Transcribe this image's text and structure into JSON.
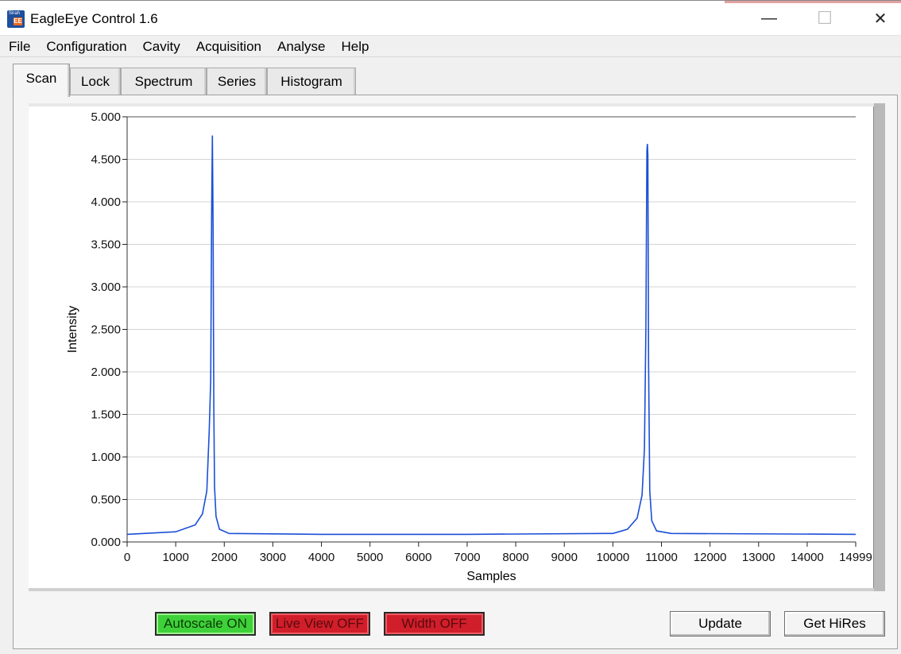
{
  "window": {
    "title": "EagleEye Control 1.6",
    "icon_label": "Sirah",
    "icon_badge": "EE",
    "minimize_glyph": "—",
    "maximize_glyph": "☐",
    "close_glyph": "✕"
  },
  "menu": [
    "File",
    "Configuration",
    "Cavity",
    "Acquisition",
    "Analyse",
    "Help"
  ],
  "tabs": [
    {
      "label": "Scan",
      "active": true
    },
    {
      "label": "Lock",
      "active": false
    },
    {
      "label": "Spectrum",
      "active": false
    },
    {
      "label": "Series",
      "active": false
    },
    {
      "label": "Histogram",
      "active": false
    }
  ],
  "chart_data": {
    "type": "line",
    "title": "",
    "xlabel": "Samples",
    "ylabel": "Intensity",
    "xlim": [
      0,
      14999
    ],
    "ylim": [
      0,
      5
    ],
    "x_ticks": [
      "0",
      "1000",
      "2000",
      "3000",
      "4000",
      "5000",
      "6000",
      "7000",
      "8000",
      "9000",
      "10000",
      "11000",
      "12000",
      "13000",
      "14000",
      "14999"
    ],
    "y_ticks": [
      "0.000",
      "0.500",
      "1.000",
      "1.500",
      "2.000",
      "2.500",
      "3.000",
      "3.500",
      "4.000",
      "4.500",
      "5.000"
    ],
    "grid": true,
    "line_color": "#1a4fd6",
    "series": [
      {
        "name": "",
        "x": [
          0,
          1000,
          1400,
          1550,
          1640,
          1690,
          1720,
          1740,
          1755,
          1770,
          1785,
          1800,
          1830,
          1900,
          2100,
          4000,
          7000,
          10000,
          10300,
          10500,
          10600,
          10650,
          10680,
          10700,
          10710,
          10720,
          10735,
          10760,
          10800,
          10900,
          11200,
          14999
        ],
        "y": [
          0.09,
          0.12,
          0.2,
          0.33,
          0.6,
          1.3,
          1.9,
          3.9,
          4.78,
          3.7,
          1.6,
          0.65,
          0.3,
          0.15,
          0.1,
          0.09,
          0.09,
          0.1,
          0.15,
          0.28,
          0.55,
          1.1,
          2.5,
          4.6,
          4.68,
          4.55,
          2.1,
          0.6,
          0.25,
          0.13,
          0.1,
          0.09
        ]
      }
    ]
  },
  "controls": {
    "autoscale": {
      "label": "Autoscale ON",
      "state": "on"
    },
    "live_view": {
      "label": "Live View OFF",
      "state": "off"
    },
    "width": {
      "label": "Width OFF",
      "state": "off"
    },
    "update": {
      "label": "Update"
    },
    "get_hires": {
      "label": "Get HiRes"
    }
  }
}
